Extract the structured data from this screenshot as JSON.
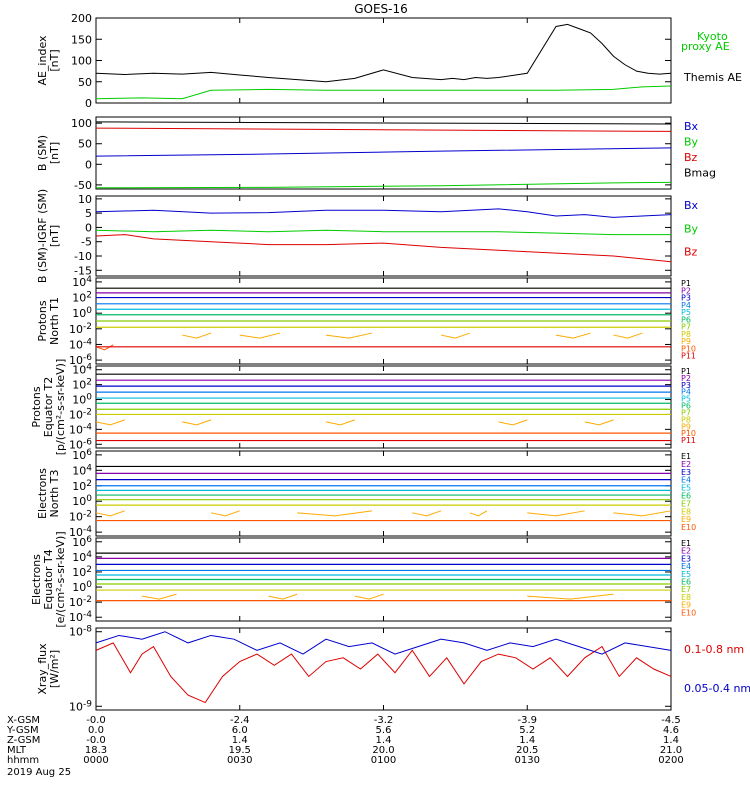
{
  "title": "GOES-16",
  "colors": {
    "black": "#000000",
    "green": "#00cc00",
    "blue": "#0000cc",
    "red": "#dd0000",
    "P": [
      "#000000",
      "#8800aa",
      "#0000cc",
      "#0077ee",
      "#00bbdd",
      "#00bb66",
      "#88cc00",
      "#cccc00",
      "#ffaa00",
      "#ff5500",
      "#dd0000",
      "#aa0000"
    ]
  },
  "chart_data": [
    {
      "type": "line",
      "id": "ae",
      "ylabel": "AE_index\n[nT]",
      "yticks": [
        {
          "v": 0,
          "l": "0"
        },
        {
          "v": 50,
          "l": "50"
        },
        {
          "v": 100,
          "l": "100"
        },
        {
          "v": 150,
          "l": "150"
        },
        {
          "v": 200,
          "l": "200"
        }
      ],
      "ylim": [
        0,
        200
      ],
      "legend": [
        {
          "text": "Kyoto",
          "color": "green"
        },
        {
          "text": "proxy AE",
          "color": "green"
        },
        {
          "text": "Themis AE",
          "color": "black"
        }
      ],
      "series": [
        {
          "name": "Themis AE",
          "color": "black",
          "x": [
            0,
            5,
            10,
            15,
            20,
            25,
            30,
            35,
            40,
            45,
            50,
            55,
            60,
            62,
            64,
            66,
            68,
            70,
            75,
            80,
            82,
            84,
            86,
            88,
            90,
            92,
            94,
            96,
            98,
            100
          ],
          "y": [
            70,
            67,
            70,
            68,
            72,
            66,
            60,
            55,
            50,
            58,
            78,
            60,
            55,
            58,
            55,
            60,
            58,
            60,
            70,
            180,
            185,
            175,
            165,
            140,
            110,
            90,
            75,
            70,
            68,
            70
          ]
        },
        {
          "name": "Kyoto proxy AE",
          "color": "green",
          "x": [
            0,
            8,
            15,
            20,
            30,
            40,
            50,
            60,
            70,
            80,
            90,
            95,
            100
          ],
          "y": [
            10,
            12,
            10,
            30,
            32,
            30,
            30,
            30,
            30,
            30,
            32,
            38,
            40
          ]
        }
      ]
    },
    {
      "type": "line",
      "id": "bsm",
      "ylabel": "B (SM)\n[nT]",
      "yticks": [
        {
          "v": -50,
          "l": "-50"
        },
        {
          "v": 0,
          "l": "0"
        },
        {
          "v": 50,
          "l": "50"
        },
        {
          "v": 100,
          "l": "100"
        }
      ],
      "ylim": [
        -60,
        115
      ],
      "legend": [
        {
          "text": "Bx",
          "color": "blue"
        },
        {
          "text": "By",
          "color": "green"
        },
        {
          "text": "Bz",
          "color": "red"
        },
        {
          "text": "Bmag",
          "color": "black"
        }
      ],
      "series": [
        {
          "name": "Bmag",
          "color": "black",
          "x": [
            0,
            100
          ],
          "y": [
            103,
            98
          ]
        },
        {
          "name": "Bz",
          "color": "red",
          "x": [
            0,
            100
          ],
          "y": [
            88,
            80
          ]
        },
        {
          "name": "Bx",
          "color": "blue",
          "x": [
            0,
            30,
            60,
            100
          ],
          "y": [
            20,
            25,
            32,
            40
          ]
        },
        {
          "name": "By",
          "color": "green",
          "x": [
            0,
            30,
            60,
            90,
            100
          ],
          "y": [
            -57,
            -56,
            -52,
            -45,
            -44
          ]
        }
      ]
    },
    {
      "type": "line",
      "id": "bigrf",
      "ylabel": "B (SM)-IGRF (SM)\n[nT]",
      "yticks": [
        {
          "v": -15,
          "l": "-15"
        },
        {
          "v": -10,
          "l": "-10"
        },
        {
          "v": -5,
          "l": "-5"
        },
        {
          "v": 0,
          "l": "0"
        },
        {
          "v": 5,
          "l": "5"
        },
        {
          "v": 10,
          "l": "10"
        }
      ],
      "ylim": [
        -17,
        11
      ],
      "legend": [
        {
          "text": "Bx",
          "color": "blue"
        },
        {
          "text": "By",
          "color": "green"
        },
        {
          "text": "Bz",
          "color": "red"
        }
      ],
      "series": [
        {
          "name": "Bx",
          "color": "blue",
          "x": [
            0,
            10,
            20,
            30,
            40,
            50,
            60,
            70,
            75,
            80,
            85,
            90,
            95,
            100
          ],
          "y": [
            5.5,
            6,
            5,
            5.2,
            6,
            6,
            5.5,
            6.5,
            5.5,
            4,
            4.5,
            3.5,
            4,
            4.5
          ]
        },
        {
          "name": "By",
          "color": "green",
          "x": [
            0,
            10,
            20,
            30,
            40,
            50,
            60,
            70,
            80,
            90,
            100
          ],
          "y": [
            -1,
            -1.5,
            -1,
            -1.5,
            -1,
            -1.5,
            -1.5,
            -1.5,
            -2,
            -2.5,
            -2.5
          ]
        },
        {
          "name": "Bz",
          "color": "red",
          "x": [
            0,
            5,
            10,
            20,
            30,
            40,
            50,
            60,
            70,
            80,
            90,
            100
          ],
          "y": [
            -3,
            -2.5,
            -4,
            -5,
            -6,
            -6,
            -5.5,
            -7,
            -8,
            -9,
            -10,
            -12
          ]
        }
      ]
    },
    {
      "type": "line",
      "id": "protonsT1",
      "log": true,
      "ylabel": "Protons\nNorth T1",
      "yticks": [
        {
          "v": 4,
          "l": "10^4"
        },
        {
          "v": 2,
          "l": "10^2"
        },
        {
          "v": 0,
          "l": "10^0"
        },
        {
          "v": -2,
          "l": "10^-2"
        },
        {
          "v": -4,
          "l": "10^-4"
        },
        {
          "v": -6,
          "l": "10^-6"
        }
      ],
      "ylim": [
        -6.5,
        4.5
      ],
      "legend": [
        "P1",
        "P2",
        "P3",
        "P4",
        "P5",
        "P6",
        "P7",
        "P8",
        "P9",
        "P10",
        "P11"
      ],
      "levels": [
        3.2,
        2.6,
        2.0,
        1.2,
        0.5,
        -0.2,
        -1.0,
        -1.8,
        -2.8,
        -4.3,
        -4.3
      ],
      "broken": {
        "P9": [
          [
            15,
            20
          ],
          [
            25,
            32
          ],
          [
            40,
            48
          ],
          [
            60,
            65
          ],
          [
            80,
            86
          ],
          [
            90,
            95
          ]
        ],
        "P10": [
          [
            0,
            3
          ]
        ]
      }
    },
    {
      "type": "line",
      "id": "protonsT2",
      "log": true,
      "ylabel": "Protons\nEquator T2\n[p/(cm²-s-sr-keV)]",
      "yticks": [
        {
          "v": 4,
          "l": "10^4"
        },
        {
          "v": 2,
          "l": "10^2"
        },
        {
          "v": 0,
          "l": "10^0"
        },
        {
          "v": -2,
          "l": "10^-2"
        },
        {
          "v": -4,
          "l": "10^-4"
        },
        {
          "v": -6,
          "l": "10^-6"
        }
      ],
      "ylim": [
        -6.5,
        4.5
      ],
      "legend": [
        "P1",
        "P2",
        "P3",
        "P4",
        "P5",
        "P6",
        "P7",
        "P8",
        "P9",
        "P10",
        "P11"
      ],
      "levels": [
        3.4,
        2.6,
        1.8,
        1.0,
        0.2,
        -0.5,
        -1.3,
        -2.0,
        -3.0,
        -4.5,
        -5.5
      ],
      "broken": {
        "P9": [
          [
            0,
            5
          ],
          [
            15,
            20
          ],
          [
            40,
            45
          ],
          [
            70,
            75
          ],
          [
            85,
            90
          ]
        ]
      }
    },
    {
      "type": "line",
      "id": "electronsT3",
      "log": true,
      "ylabel": "Electrons\nNorth T3",
      "yticks": [
        {
          "v": 6,
          "l": "10^6"
        },
        {
          "v": 4,
          "l": "10^4"
        },
        {
          "v": 2,
          "l": "10^2"
        },
        {
          "v": 0,
          "l": "10^0"
        },
        {
          "v": -2,
          "l": "10^-2"
        },
        {
          "v": -4,
          "l": "10^-4"
        }
      ],
      "ylim": [
        -4.5,
        6.5
      ],
      "legend": [
        "E1",
        "E2",
        "E3",
        "E4",
        "E5",
        "E6",
        "E7",
        "E8",
        "E9",
        "E10"
      ],
      "levels": [
        4.5,
        3.6,
        2.8,
        2.0,
        1.4,
        0.8,
        0.2,
        -0.5,
        -1.5,
        -2.5
      ],
      "broken": {
        "E9": [
          [
            0,
            5
          ],
          [
            20,
            25
          ],
          [
            35,
            48
          ],
          [
            55,
            60
          ],
          [
            65,
            68
          ],
          [
            75,
            85
          ],
          [
            90,
            100
          ]
        ]
      }
    },
    {
      "type": "line",
      "id": "electronsT4",
      "log": true,
      "ylabel": "Electrons\nEquator T4\n[e/(cm²-s-sr-keV)]",
      "yticks": [
        {
          "v": 6,
          "l": "10^6"
        },
        {
          "v": 4,
          "l": "10^4"
        },
        {
          "v": 2,
          "l": "10^2"
        },
        {
          "v": 0,
          "l": "10^0"
        },
        {
          "v": -2,
          "l": "10^-2"
        },
        {
          "v": -4,
          "l": "10^-4"
        }
      ],
      "ylim": [
        -4.5,
        6.5
      ],
      "legend": [
        "E1",
        "E2",
        "E3",
        "E4",
        "E5",
        "E6",
        "E7",
        "E8",
        "E9",
        "E10"
      ],
      "levels": [
        4.5,
        3.8,
        3.0,
        2.2,
        1.6,
        1.0,
        0.4,
        -0.4,
        -1.2,
        -1.8
      ],
      "broken": {
        "E9": [
          [
            8,
            14
          ],
          [
            30,
            35
          ],
          [
            45,
            50
          ],
          [
            75,
            90
          ]
        ]
      }
    },
    {
      "type": "line",
      "id": "xray",
      "log": true,
      "ylabel": "Xray_flux\n[W/m²]",
      "yticks": [
        {
          "v": -8,
          "l": "10^-8"
        },
        {
          "v": -9,
          "l": "10^-9"
        }
      ],
      "ylim": [
        -9.05,
        -7.95
      ],
      "legend": [
        {
          "text": "0.1-0.8 nm",
          "color": "red"
        },
        {
          "text": "0.05-0.4 nm",
          "color": "blue"
        }
      ],
      "series": [
        {
          "name": "0.1-0.8 nm",
          "color": "red",
          "x": [
            0,
            3,
            6,
            8,
            10,
            13,
            16,
            19,
            22,
            25,
            28,
            31,
            34,
            37,
            40,
            43,
            46,
            49,
            52,
            55,
            58,
            61,
            64,
            67,
            70,
            73,
            76,
            79,
            82,
            85,
            88,
            91,
            94,
            97,
            100
          ],
          "y": [
            -8.25,
            -8.15,
            -8.55,
            -8.3,
            -8.2,
            -8.6,
            -8.85,
            -8.95,
            -8.6,
            -8.4,
            -8.3,
            -8.45,
            -8.3,
            -8.6,
            -8.4,
            -8.35,
            -8.5,
            -8.3,
            -8.55,
            -8.25,
            -8.6,
            -8.35,
            -8.7,
            -8.4,
            -8.3,
            -8.35,
            -8.5,
            -8.35,
            -8.6,
            -8.35,
            -8.2,
            -8.6,
            -8.35,
            -8.5,
            -8.6
          ]
        },
        {
          "name": "0.05-0.4 nm",
          "color": "blue",
          "x": [
            0,
            4,
            8,
            12,
            16,
            20,
            24,
            28,
            32,
            36,
            40,
            44,
            48,
            52,
            56,
            60,
            64,
            68,
            72,
            76,
            80,
            84,
            88,
            92,
            96,
            100
          ],
          "y": [
            -8.15,
            -8.05,
            -8.1,
            -8.0,
            -8.15,
            -8.05,
            -8.1,
            -8.25,
            -8.15,
            -8.3,
            -8.1,
            -8.2,
            -8.15,
            -8.3,
            -8.2,
            -8.1,
            -8.15,
            -8.25,
            -8.15,
            -8.2,
            -8.1,
            -8.2,
            -8.3,
            -8.15,
            -8.2,
            -8.25
          ]
        }
      ]
    }
  ],
  "xaxis": {
    "rows": [
      {
        "label": "X-GSM",
        "values": [
          "-0.0",
          "-2.4",
          "-3.2",
          "-3.9",
          "-4.5"
        ]
      },
      {
        "label": "Y-GSM",
        "values": [
          "0.0",
          "6.0",
          "5.6",
          "5.2",
          "4.6"
        ]
      },
      {
        "label": "Z-GSM",
        "values": [
          "-0.0",
          "1.4",
          "1.4",
          "1.4",
          "1.4"
        ]
      },
      {
        "label": "MLT",
        "values": [
          "18.3",
          "19.5",
          "20.0",
          "20.5",
          "21.0"
        ]
      },
      {
        "label": "hhmm",
        "values": [
          "0000",
          "0030",
          "0100",
          "0130",
          "0200"
        ]
      }
    ],
    "date": "2019 Aug 25"
  }
}
